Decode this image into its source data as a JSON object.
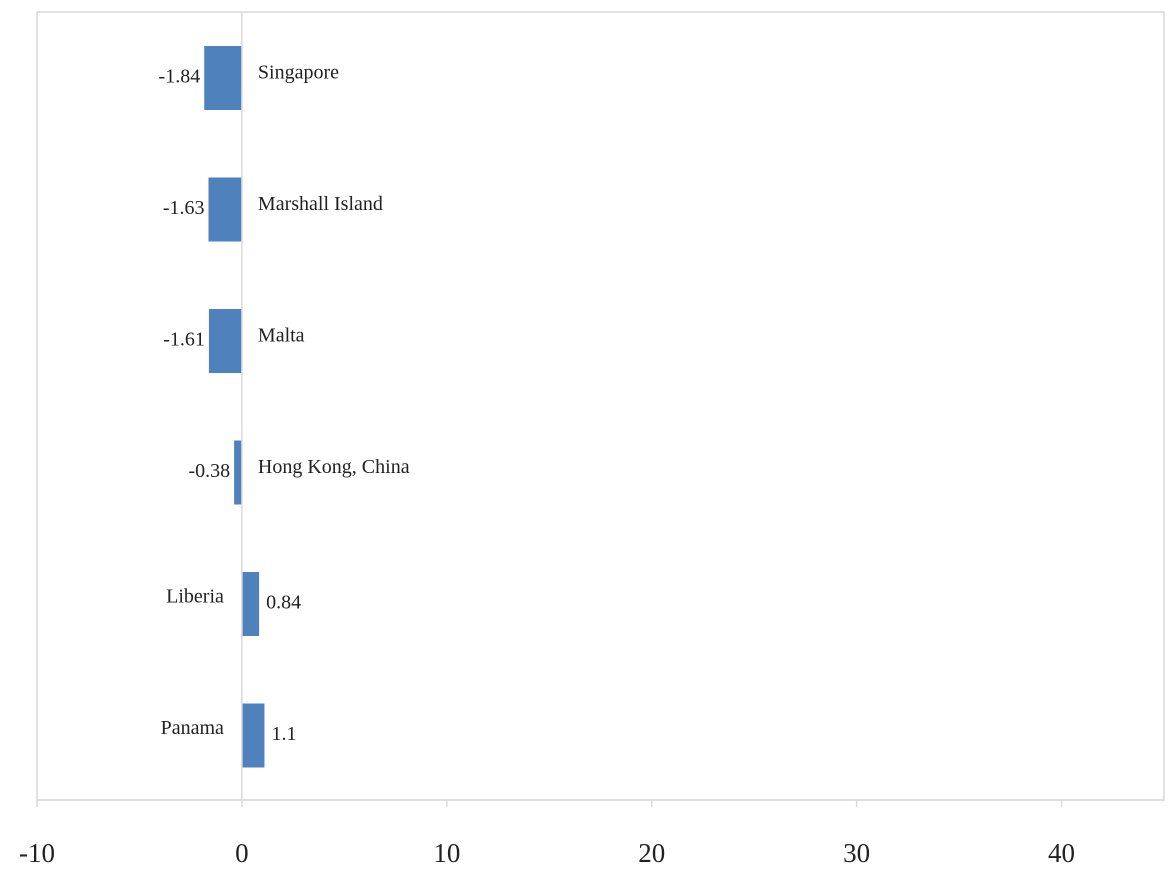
{
  "chart_data": {
    "type": "bar",
    "orientation": "horizontal",
    "categories": [
      "Singapore",
      "Marshall Island",
      "Malta",
      "Hong Kong, China",
      "Liberia",
      "Panama"
    ],
    "values": [
      -1.84,
      -1.63,
      -1.61,
      -0.38,
      0.84,
      1.1
    ],
    "value_labels": [
      "-1.84",
      "-1.63",
      "-1.61",
      "-0.38",
      "0.84",
      "1.1"
    ],
    "title": "",
    "xlabel": "",
    "ylabel": "",
    "xlim": [
      -10,
      45
    ],
    "x_ticks": [
      -10,
      0,
      10,
      20,
      30,
      40
    ],
    "x_tick_labels": [
      "-10",
      "0",
      "10",
      "20",
      "30",
      "40"
    ],
    "grid": false,
    "legend": "none",
    "bar_color": "#4f81bd",
    "label_placement": "category label beside the bar opposite the value label"
  }
}
